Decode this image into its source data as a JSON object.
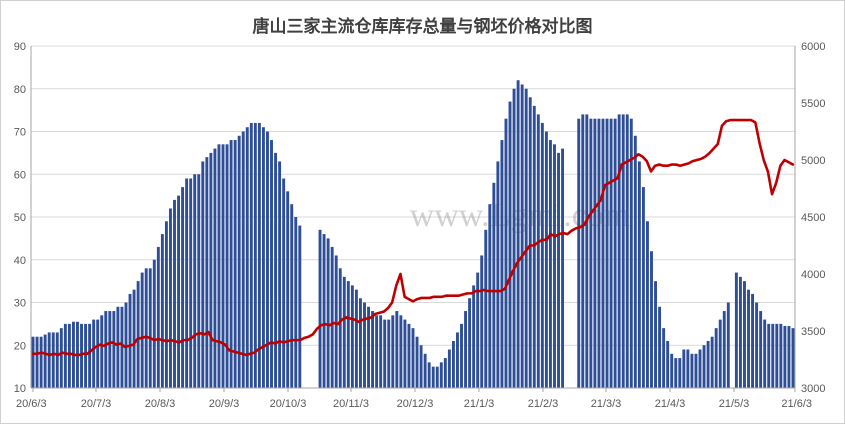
{
  "chart_data": {
    "type": "bar",
    "title": "唐山三家主流仓库库存总量与钢坯价格对比图",
    "watermark": "www.Lgmi.com",
    "x_ticks": [
      "20/6/3",
      "20/7/3",
      "20/8/3",
      "20/9/3",
      "20/10/3",
      "20/11/3",
      "20/12/3",
      "21/1/3",
      "21/2/3",
      "21/3/3",
      "21/4/3",
      "21/5/3",
      "21/6/3"
    ],
    "y_left": {
      "min": 10,
      "max": 90,
      "ticks": [
        10,
        20,
        30,
        40,
        50,
        60,
        70,
        80,
        90
      ]
    },
    "y_right": {
      "min": 3000,
      "max": 6000,
      "ticks": [
        3000,
        3500,
        4000,
        4500,
        5000,
        5500,
        6000
      ]
    },
    "colors": {
      "bar": "#2e4f97",
      "line": "#c00000",
      "grid": "#d9d9d9",
      "axis": "#a6a6a6"
    },
    "series": [
      {
        "type": "bar",
        "axis": "left",
        "values": [
          22,
          22,
          22,
          22.5,
          23,
          23,
          23,
          24,
          25,
          25,
          25.5,
          25.5,
          25,
          25,
          25,
          26,
          26,
          27,
          28,
          28,
          28,
          29,
          29,
          30,
          32,
          33,
          35,
          37,
          38,
          38,
          40,
          43,
          46,
          49,
          52,
          54,
          55,
          57,
          59,
          59,
          60,
          60,
          63,
          64,
          65,
          66,
          67,
          67,
          67,
          68,
          68,
          69,
          70,
          71,
          72,
          72,
          72,
          71,
          70,
          68,
          65,
          63,
          59,
          56,
          53,
          50,
          48,
          10,
          10,
          10,
          10,
          47,
          46,
          45,
          43,
          41,
          38,
          36,
          35,
          34,
          33,
          31,
          30,
          29,
          28,
          27,
          27,
          26,
          26,
          27,
          28,
          27,
          26,
          25,
          24,
          22,
          20,
          18,
          16,
          15,
          15,
          16,
          17,
          19,
          21,
          23,
          25,
          28,
          31,
          34,
          37,
          41,
          47,
          53,
          58,
          63,
          68,
          73,
          77,
          80,
          82,
          81,
          80,
          78,
          76,
          74,
          72,
          70,
          68,
          67,
          65,
          66,
          10,
          10,
          10,
          73,
          74,
          74,
          73,
          73,
          73,
          73,
          73,
          73,
          73,
          74,
          74,
          74,
          73,
          69,
          63,
          57,
          49,
          42,
          35,
          29,
          24,
          21,
          18,
          17,
          17,
          19,
          19,
          18,
          18,
          19,
          20,
          21,
          22,
          24,
          26,
          28,
          30,
          10,
          37,
          36,
          35,
          33,
          32,
          30,
          28,
          26,
          25,
          25,
          25,
          25,
          24.5,
          24.5,
          24
        ]
      },
      {
        "type": "line",
        "axis": "right",
        "values": [
          3300,
          3300,
          3310,
          3300,
          3290,
          3300,
          3290,
          3310,
          3300,
          3300,
          3290,
          3290,
          3300,
          3300,
          3330,
          3360,
          3380,
          3370,
          3390,
          3400,
          3380,
          3390,
          3360,
          3370,
          3380,
          3430,
          3440,
          3450,
          3440,
          3420,
          3430,
          3420,
          3410,
          3420,
          3410,
          3400,
          3420,
          3420,
          3440,
          3470,
          3480,
          3470,
          3490,
          3420,
          3410,
          3400,
          3380,
          3330,
          3320,
          3310,
          3300,
          3290,
          3300,
          3310,
          3340,
          3360,
          3380,
          3400,
          3390,
          3410,
          3400,
          3410,
          3420,
          3420,
          3420,
          3440,
          3450,
          3470,
          3520,
          3550,
          3560,
          3550,
          3570,
          3560,
          3600,
          3620,
          3610,
          3600,
          3580,
          3600,
          3610,
          3620,
          3650,
          3660,
          3670,
          3700,
          3750,
          3900,
          4000,
          3800,
          3780,
          3760,
          3780,
          3790,
          3790,
          3790,
          3800,
          3800,
          3800,
          3810,
          3810,
          3810,
          3810,
          3820,
          3830,
          3830,
          3850,
          3850,
          3860,
          3850,
          3850,
          3850,
          3850,
          3870,
          3950,
          4030,
          4100,
          4150,
          4200,
          4250,
          4250,
          4280,
          4300,
          4300,
          4350,
          4330,
          4350,
          4360,
          4350,
          4380,
          4400,
          4410,
          4430,
          4500,
          4550,
          4600,
          4650,
          4780,
          4800,
          4820,
          4840,
          4960,
          4980,
          5000,
          5020,
          5050,
          5030,
          4990,
          4900,
          4950,
          4960,
          4950,
          4950,
          4960,
          4960,
          4950,
          4960,
          4970,
          4990,
          5000,
          5010,
          5030,
          5060,
          5100,
          5140,
          5300,
          5340,
          5350,
          5350,
          5350,
          5350,
          5350,
          5350,
          5330,
          5150,
          5000,
          4900,
          4700,
          4800,
          4950,
          5000,
          4980,
          4960
        ]
      }
    ]
  }
}
